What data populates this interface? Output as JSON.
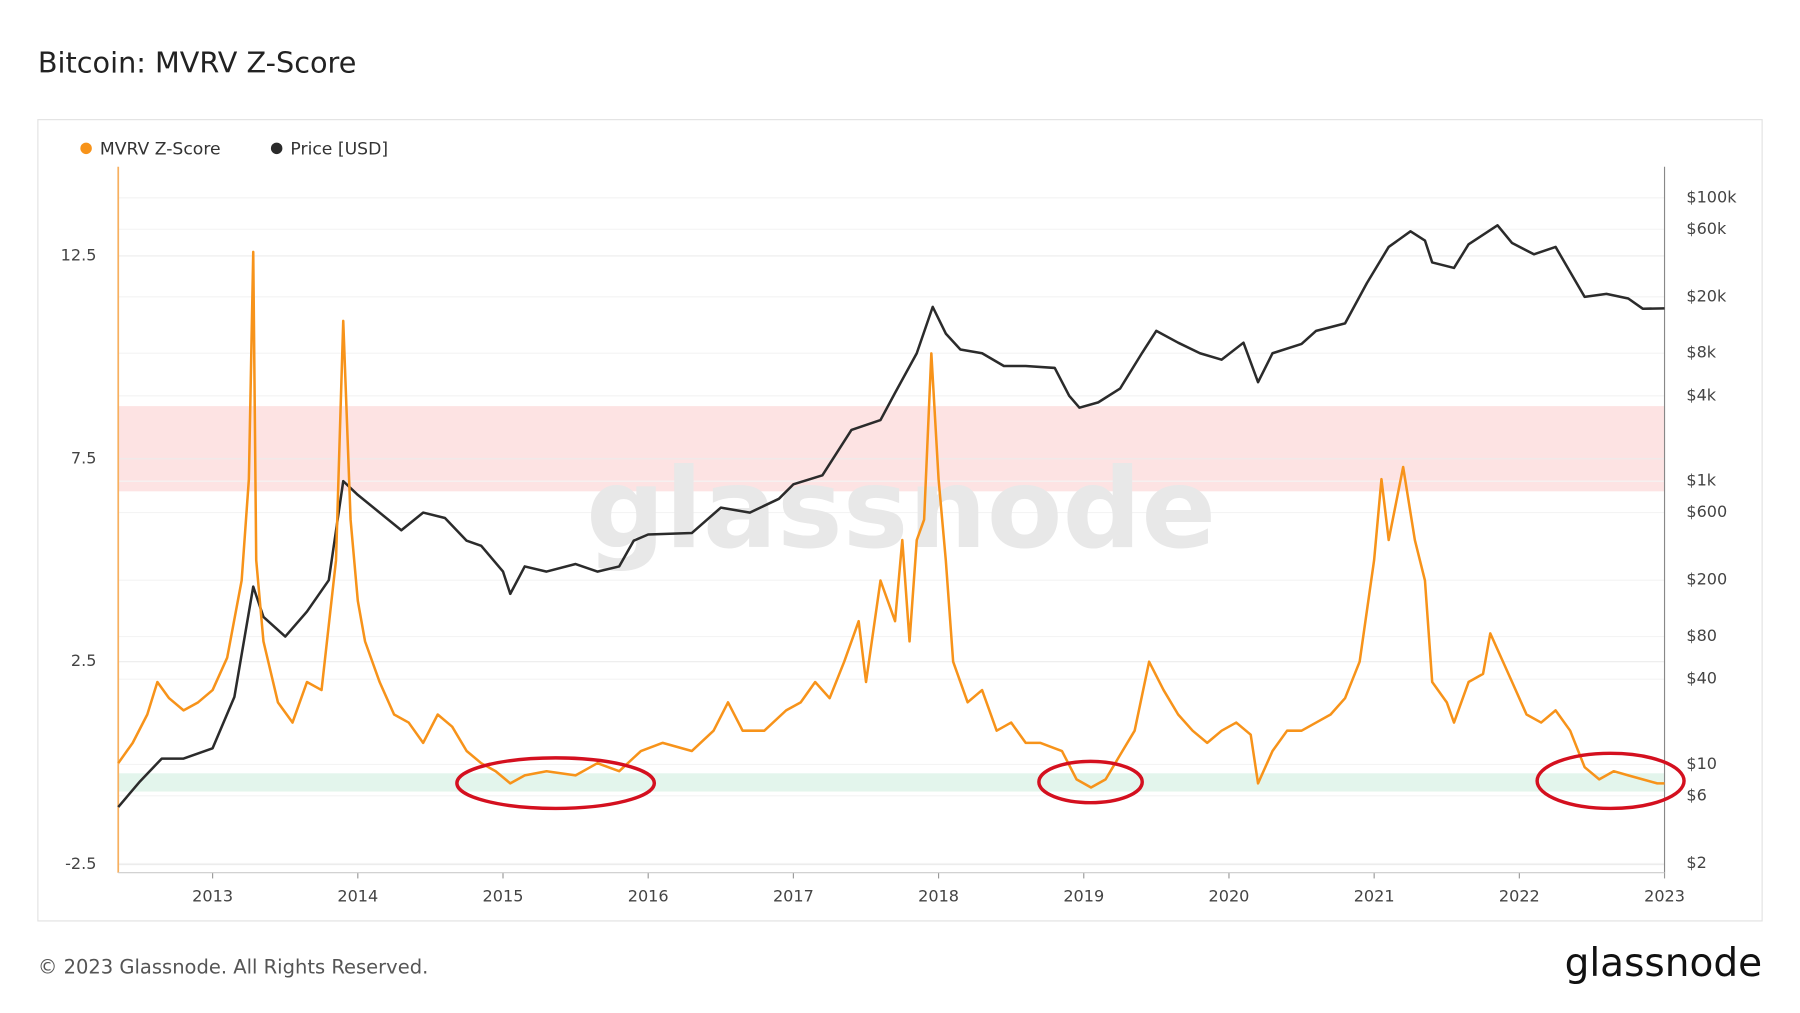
{
  "chart_data": {
    "type": "line",
    "title": "Bitcoin: MVRV Z-Score",
    "watermark": "glassnode",
    "footer": "© 2023 Glassnode. All Rights Reserved.",
    "logo": "glassnode",
    "xlim": [
      2012.35,
      2023.0
    ],
    "xticks": [
      2013,
      2014,
      2015,
      2016,
      2017,
      2018,
      2019,
      2020,
      2021,
      2022,
      2023
    ],
    "ylim": [
      -2.7,
      14.7
    ],
    "yticks": [
      -2.5,
      2.5,
      7.5,
      12.5
    ],
    "y2lim": [
      1.72,
      166000
    ],
    "y2scale": "log",
    "y2ticks": [
      {
        "value": 100000,
        "label": "$100k"
      },
      {
        "value": 60000,
        "label": "$60k"
      },
      {
        "value": 20000,
        "label": "$20k"
      },
      {
        "value": 8000,
        "label": "$8k"
      },
      {
        "value": 4000,
        "label": "$4k"
      },
      {
        "value": 1000,
        "label": "$1k"
      },
      {
        "value": 600,
        "label": "$600"
      },
      {
        "value": 200,
        "label": "$200"
      },
      {
        "value": 80,
        "label": "$80"
      },
      {
        "value": 40,
        "label": "$40"
      },
      {
        "value": 10,
        "label": "$10"
      },
      {
        "value": 6,
        "label": "$6"
      },
      {
        "value": 2,
        "label": "$2"
      }
    ],
    "grid": true,
    "legend": "top-left",
    "bands": [
      {
        "from": 6.7,
        "to": 8.8,
        "color": "#fde3e3"
      },
      {
        "from": -0.7,
        "to": -0.25,
        "color": "#e3f5ec"
      }
    ],
    "series": [
      {
        "name": "MVRV Z-Score",
        "color": "#f7931a",
        "axis": "y",
        "x": [
          2012.35,
          2012.45,
          2012.55,
          2012.62,
          2012.7,
          2012.8,
          2012.9,
          2013.0,
          2013.1,
          2013.2,
          2013.25,
          2013.28,
          2013.3,
          2013.35,
          2013.45,
          2013.55,
          2013.65,
          2013.75,
          2013.85,
          2013.9,
          2013.95,
          2014.0,
          2014.05,
          2014.15,
          2014.25,
          2014.35,
          2014.45,
          2014.55,
          2014.65,
          2014.75,
          2014.85,
          2014.95,
          2015.05,
          2015.15,
          2015.3,
          2015.5,
          2015.65,
          2015.8,
          2015.95,
          2016.1,
          2016.3,
          2016.45,
          2016.55,
          2016.65,
          2016.8,
          2016.95,
          2017.05,
          2017.15,
          2017.25,
          2017.35,
          2017.45,
          2017.5,
          2017.6,
          2017.7,
          2017.75,
          2017.8,
          2017.85,
          2017.9,
          2017.95,
          2018.0,
          2018.05,
          2018.1,
          2018.2,
          2018.3,
          2018.4,
          2018.5,
          2018.6,
          2018.7,
          2018.85,
          2018.95,
          2019.05,
          2019.15,
          2019.25,
          2019.35,
          2019.45,
          2019.55,
          2019.65,
          2019.75,
          2019.85,
          2019.95,
          2020.05,
          2020.15,
          2020.2,
          2020.3,
          2020.4,
          2020.5,
          2020.6,
          2020.7,
          2020.8,
          2020.9,
          2021.0,
          2021.05,
          2021.1,
          2021.2,
          2021.28,
          2021.35,
          2021.4,
          2021.5,
          2021.55,
          2021.65,
          2021.75,
          2021.8,
          2021.85,
          2021.95,
          2022.05,
          2022.15,
          2022.25,
          2022.35,
          2022.45,
          2022.55,
          2022.65,
          2022.75,
          2022.85,
          2022.95,
          2023.0
        ],
        "values": [
          0.0,
          0.5,
          1.2,
          2.0,
          1.6,
          1.3,
          1.5,
          1.8,
          2.6,
          4.5,
          7.0,
          12.6,
          5.0,
          3.0,
          1.5,
          1.0,
          2.0,
          1.8,
          5.0,
          10.9,
          6.0,
          4.0,
          3.0,
          2.0,
          1.2,
          1.0,
          0.5,
          1.2,
          0.9,
          0.3,
          0.0,
          -0.2,
          -0.5,
          -0.3,
          -0.2,
          -0.3,
          0.0,
          -0.2,
          0.3,
          0.5,
          0.3,
          0.8,
          1.5,
          0.8,
          0.8,
          1.3,
          1.5,
          2.0,
          1.6,
          2.5,
          3.5,
          2.0,
          4.5,
          3.5,
          5.5,
          3.0,
          5.5,
          6.0,
          10.1,
          7.0,
          5.0,
          2.5,
          1.5,
          1.8,
          0.8,
          1.0,
          0.5,
          0.5,
          0.3,
          -0.4,
          -0.6,
          -0.4,
          0.2,
          0.8,
          2.5,
          1.8,
          1.2,
          0.8,
          0.5,
          0.8,
          1.0,
          0.7,
          -0.5,
          0.3,
          0.8,
          0.8,
          1.0,
          1.2,
          1.6,
          2.5,
          5.0,
          7.0,
          5.5,
          7.3,
          5.5,
          4.5,
          2.0,
          1.5,
          1.0,
          2.0,
          2.2,
          3.2,
          2.8,
          2.0,
          1.2,
          1.0,
          1.3,
          0.8,
          -0.1,
          -0.4,
          -0.2,
          -0.3,
          -0.4,
          -0.5,
          -0.5
        ]
      },
      {
        "name": "Price [USD]",
        "color": "#2b2b2b",
        "axis": "y2",
        "x": [
          2012.35,
          2012.5,
          2012.65,
          2012.8,
          2013.0,
          2013.15,
          2013.28,
          2013.35,
          2013.5,
          2013.65,
          2013.8,
          2013.9,
          2014.0,
          2014.15,
          2014.3,
          2014.45,
          2014.6,
          2014.75,
          2014.85,
          2015.0,
          2015.05,
          2015.15,
          2015.3,
          2015.5,
          2015.65,
          2015.8,
          2015.9,
          2016.0,
          2016.3,
          2016.5,
          2016.7,
          2016.9,
          2017.0,
          2017.2,
          2017.4,
          2017.6,
          2017.7,
          2017.85,
          2017.96,
          2018.05,
          2018.15,
          2018.3,
          2018.45,
          2018.6,
          2018.8,
          2018.9,
          2018.97,
          2019.1,
          2019.25,
          2019.4,
          2019.5,
          2019.65,
          2019.8,
          2019.95,
          2020.1,
          2020.2,
          2020.3,
          2020.5,
          2020.6,
          2020.8,
          2020.95,
          2021.1,
          2021.25,
          2021.35,
          2021.4,
          2021.55,
          2021.65,
          2021.85,
          2021.95,
          2022.1,
          2022.25,
          2022.35,
          2022.45,
          2022.6,
          2022.75,
          2022.85,
          2023.0
        ],
        "values": [
          5,
          7.6,
          11,
          11,
          13,
          30,
          180,
          110,
          80,
          120,
          200,
          1000,
          800,
          600,
          450,
          600,
          550,
          380,
          350,
          230,
          160,
          250,
          230,
          260,
          230,
          250,
          380,
          420,
          430,
          650,
          600,
          750,
          950,
          1100,
          2300,
          2700,
          4200,
          8000,
          17000,
          11000,
          8500,
          8000,
          6500,
          6500,
          6300,
          4000,
          3300,
          3600,
          4500,
          8000,
          11500,
          9500,
          8000,
          7200,
          9500,
          5000,
          8000,
          9300,
          11500,
          13000,
          25000,
          45000,
          58000,
          50000,
          35000,
          32000,
          47000,
          64000,
          48000,
          40000,
          45000,
          30000,
          20000,
          21000,
          19500,
          16500,
          16600
        ]
      }
    ]
  }
}
